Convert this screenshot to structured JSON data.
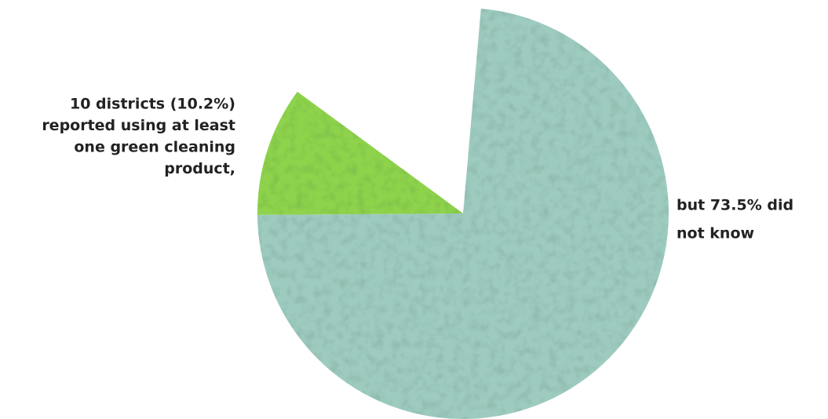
{
  "chart_data": {
    "type": "pie",
    "categories": [
      "did not know",
      "reported using at least one green cleaning product"
    ],
    "values": [
      73.5,
      10.2
    ],
    "colors": [
      "#9ecbbf",
      "#8ed34b"
    ],
    "annotations": [
      [
        "10 districts (10.2%)",
        "reported using at least",
        "one green cleaning",
        "product,"
      ],
      [
        "but 73.5% did",
        "not know"
      ]
    ]
  }
}
